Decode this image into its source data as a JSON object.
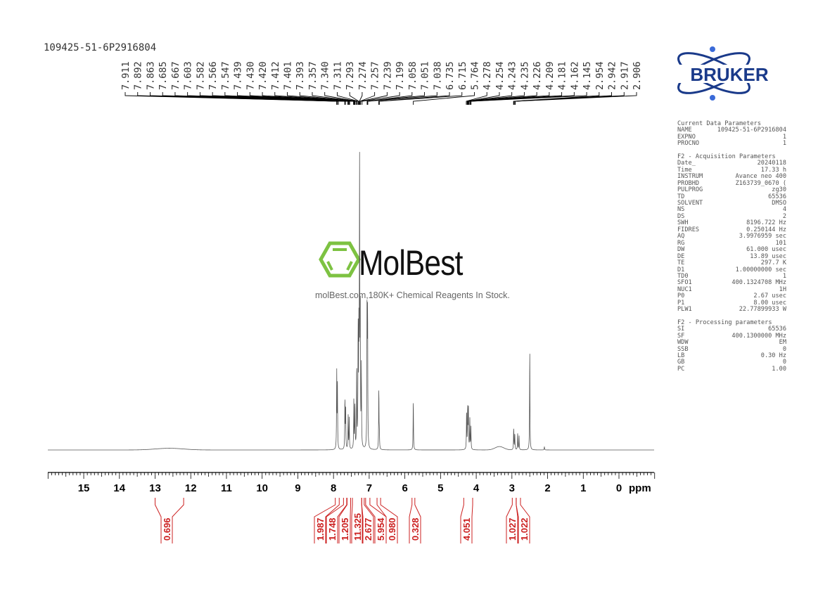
{
  "title": "109425-51-6P2916804",
  "logo": {
    "text": "BRUKER",
    "color": "#1a3a8a"
  },
  "watermark": {
    "brand": "MolBest",
    "tagline": "molBest.com,180K+ Chemical Reagents In Stock.",
    "color": "#7dc242"
  },
  "parameters": {
    "sections": [
      {
        "heading": "Current Data Parameters",
        "rows": [
          [
            "NAME",
            "109425-51-6P2916804"
          ],
          [
            "EXPNO",
            "1"
          ],
          [
            "PROCNO",
            "1"
          ]
        ]
      },
      {
        "heading": "F2 - Acquisition Parameters",
        "rows": [
          [
            "Date_",
            "20240118"
          ],
          [
            "Time",
            "17.33 h"
          ],
          [
            "INSTRUM",
            "Avance neo 400"
          ],
          [
            "PROBHD",
            "Z163739_0670 ("
          ],
          [
            "PULPROG",
            "zg30"
          ],
          [
            "TD",
            "65536"
          ],
          [
            "SOLVENT",
            "DMSO"
          ],
          [
            "NS",
            "4"
          ],
          [
            "DS",
            "2"
          ],
          [
            "SWH",
            "8196.722 Hz"
          ],
          [
            "FIDRES",
            "0.250144 Hz"
          ],
          [
            "AQ",
            "3.9976959 sec"
          ],
          [
            "RG",
            "101"
          ],
          [
            "DW",
            "61.000 usec"
          ],
          [
            "DE",
            "13.89 usec"
          ],
          [
            "TE",
            "297.7 K"
          ],
          [
            "D1",
            "1.00000000 sec"
          ],
          [
            "TD0",
            "1"
          ],
          [
            "SFO1",
            "400.1324708 MHz"
          ],
          [
            "NUC1",
            "1H"
          ],
          [
            "P0",
            "2.67 usec"
          ],
          [
            "P1",
            "8.00 usec"
          ],
          [
            "PLW1",
            "22.77899933 W"
          ]
        ]
      },
      {
        "heading": "F2 - Processing parameters",
        "rows": [
          [
            "SI",
            "65536"
          ],
          [
            "SF",
            "400.1300000 MHz"
          ],
          [
            "WDW",
            "EM"
          ],
          [
            "SSB",
            "0"
          ],
          [
            "LB",
            "0.30 Hz"
          ],
          [
            "GB",
            "0"
          ],
          [
            "PC",
            "1.00"
          ]
        ]
      }
    ]
  },
  "chart_data": {
    "type": "line",
    "xlabel": "ppm",
    "xlim": [
      16,
      -1
    ],
    "x_reversed": true,
    "xticks": [
      "15",
      "14",
      "13",
      "12",
      "11",
      "10",
      "9",
      "8",
      "7",
      "6",
      "5",
      "4",
      "3",
      "2",
      "1",
      "0"
    ],
    "peak_labels": [
      "7.911",
      "7.892",
      "7.863",
      "7.685",
      "7.667",
      "7.603",
      "7.582",
      "7.566",
      "7.547",
      "7.439",
      "7.430",
      "7.420",
      "7.412",
      "7.401",
      "7.393",
      "7.357",
      "7.340",
      "7.311",
      "7.293",
      "7.274",
      "7.257",
      "7.239",
      "7.199",
      "7.058",
      "7.051",
      "7.038",
      "6.735",
      "6.715",
      "5.764",
      "4.278",
      "4.254",
      "4.243",
      "4.235",
      "4.226",
      "4.209",
      "4.181",
      "4.162",
      "4.145",
      "2.954",
      "2.942",
      "2.917",
      "2.906"
    ],
    "peaks": [
      {
        "ppm": 7.91,
        "intensity": 0.27
      },
      {
        "ppm": 7.89,
        "intensity": 0.22
      },
      {
        "ppm": 7.68,
        "intensity": 0.18
      },
      {
        "ppm": 7.66,
        "intensity": 0.15
      },
      {
        "ppm": 7.59,
        "intensity": 0.12
      },
      {
        "ppm": 7.56,
        "intensity": 0.11
      },
      {
        "ppm": 7.43,
        "intensity": 0.18
      },
      {
        "ppm": 7.4,
        "intensity": 0.16
      },
      {
        "ppm": 7.35,
        "intensity": 0.3
      },
      {
        "ppm": 7.31,
        "intensity": 0.42
      },
      {
        "ppm": 7.29,
        "intensity": 0.38
      },
      {
        "ppm": 7.27,
        "intensity": 1.0
      },
      {
        "ppm": 7.25,
        "intensity": 0.45
      },
      {
        "ppm": 7.22,
        "intensity": 0.28
      },
      {
        "ppm": 7.06,
        "intensity": 0.52
      },
      {
        "ppm": 7.045,
        "intensity": 0.48
      },
      {
        "ppm": 6.73,
        "intensity": 0.22
      },
      {
        "ppm": 6.715,
        "intensity": 0.05
      },
      {
        "ppm": 5.764,
        "intensity": 0.18
      },
      {
        "ppm": 4.27,
        "intensity": 0.14
      },
      {
        "ppm": 4.24,
        "intensity": 0.15
      },
      {
        "ppm": 4.22,
        "intensity": 0.15
      },
      {
        "ppm": 4.18,
        "intensity": 0.11
      },
      {
        "ppm": 4.15,
        "intensity": 0.08
      },
      {
        "ppm": 2.95,
        "intensity": 0.08
      },
      {
        "ppm": 2.92,
        "intensity": 0.06
      },
      {
        "ppm": 2.84,
        "intensity": 0.06
      },
      {
        "ppm": 2.8,
        "intensity": 0.05
      },
      {
        "ppm": 2.5,
        "intensity": 0.36
      },
      {
        "ppm": 2.09,
        "intensity": 0.012
      }
    ],
    "integrals": [
      {
        "value": "0.696",
        "from": 13.0,
        "to": 12.2
      },
      {
        "value": "1.987",
        "from": 7.95,
        "to": 7.84
      },
      {
        "value": "1.748",
        "from": 7.72,
        "to": 7.63
      },
      {
        "value": "1.205",
        "from": 7.62,
        "to": 7.52
      },
      {
        "value": "11.325",
        "from": 7.47,
        "to": 7.21
      },
      {
        "value": "2.677",
        "from": 7.21,
        "to": 7.14
      },
      {
        "value": "5.954",
        "from": 7.1,
        "to": 6.98
      },
      {
        "value": "0.980",
        "from": 6.78,
        "to": 6.68
      },
      {
        "value": "0.328",
        "from": 5.8,
        "to": 5.72
      },
      {
        "value": "4.051",
        "from": 4.35,
        "to": 4.1
      },
      {
        "value": "1.027",
        "from": 2.99,
        "to": 2.88
      },
      {
        "value": "1.022",
        "from": 2.88,
        "to": 2.76
      }
    ],
    "line_color": "#555555",
    "integral_color": "#cc2020"
  }
}
